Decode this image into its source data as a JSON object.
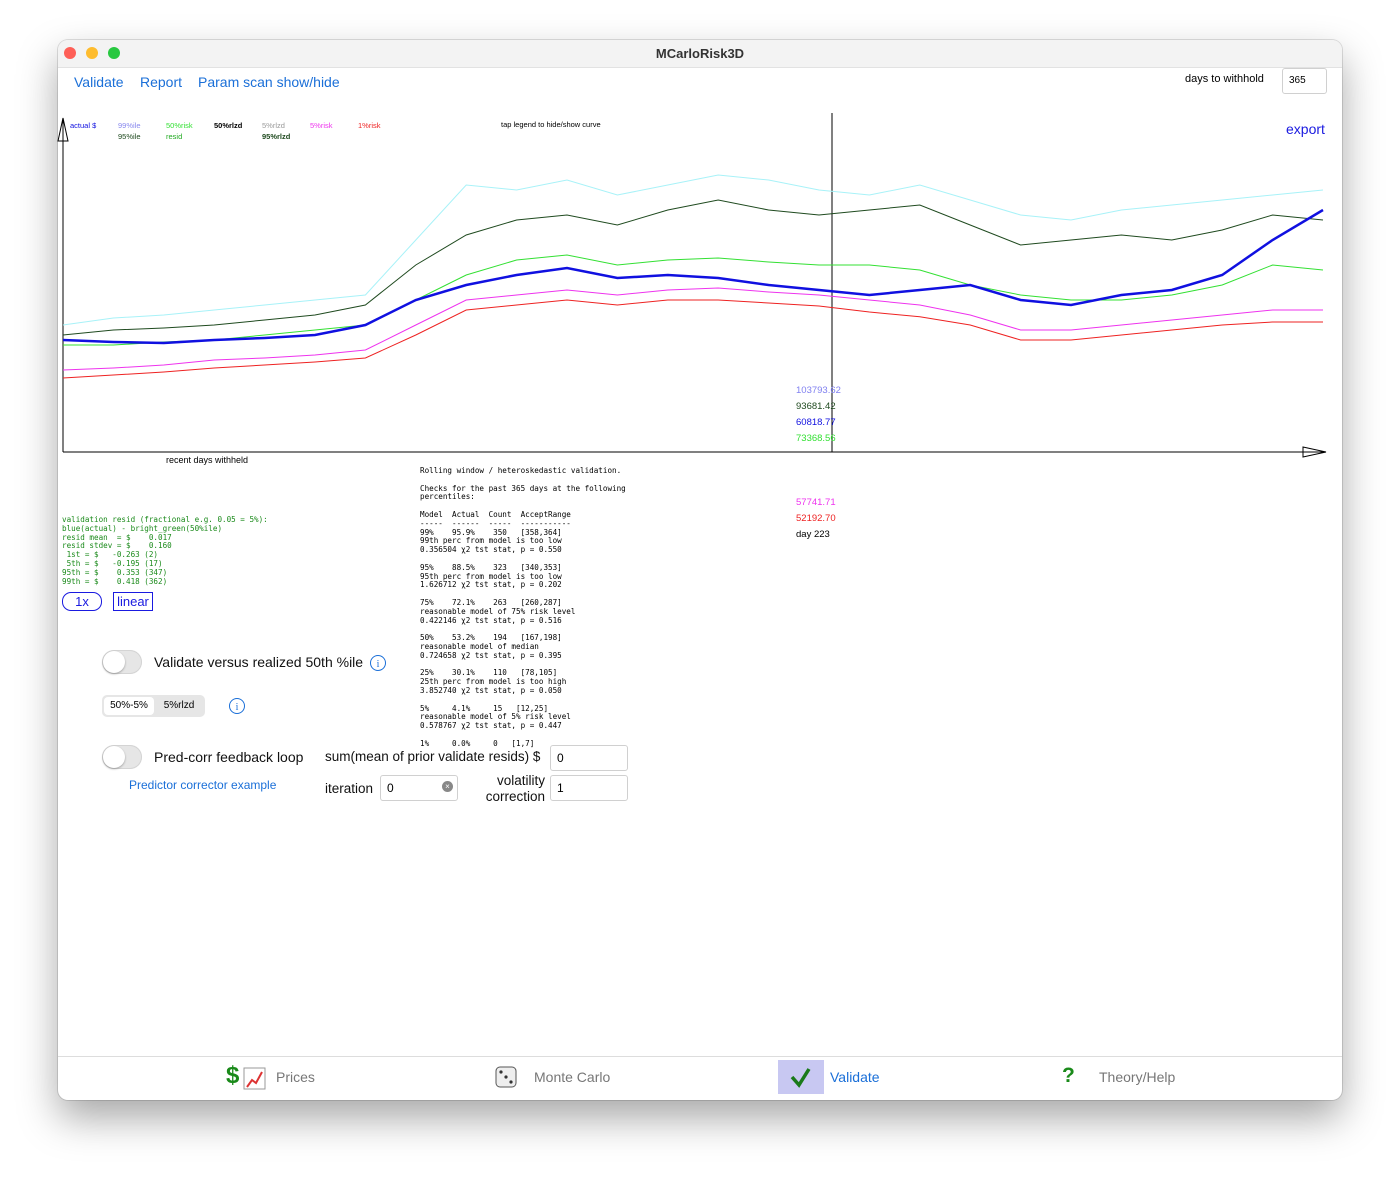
{
  "window_title": "MCarloRisk3D",
  "menu": [
    "Validate",
    "Report",
    "Param scan show/hide"
  ],
  "days_to_withhold": {
    "label": "days to withhold",
    "value": "365"
  },
  "export": "export",
  "chart_data": {
    "type": "line",
    "note": "tap legend to hide/show curve",
    "xlabel": "recent days withheld",
    "ylim": [
      -7920,
      148020
    ],
    "series": [
      {
        "name": "actual $",
        "color": "#1010e0",
        "values": [
          43600,
          42680,
          42220,
          43600,
          44520,
          45900,
          50500,
          62000,
          68900,
          73500,
          76720,
          72120,
          73500,
          72120,
          68900,
          66600,
          64300,
          66600,
          68900,
          62000,
          59700,
          64300,
          66600,
          73500,
          89600,
          103400
        ]
      },
      {
        "name": "99%ile",
        "color": "#a8f2f8",
        "values": [
          50500,
          53720,
          55100,
          57400,
          59700,
          62000,
          64300,
          89600,
          114900,
          112600,
          117200,
          110300,
          114900,
          119500,
          117200,
          112600,
          110300,
          114900,
          108000,
          101100,
          98800,
          103400,
          105700,
          108000,
          110300,
          112600
        ]
      },
      {
        "name": "95%ile",
        "color": "#1f4a1f",
        "values": [
          45900,
          48200,
          49120,
          50500,
          52800,
          55100,
          59700,
          78100,
          91900,
          98800,
          101100,
          96500,
          103400,
          108000,
          103400,
          101100,
          103400,
          105700,
          96500,
          87300,
          89600,
          91900,
          89600,
          94200,
          101100,
          98800
        ]
      },
      {
        "name": "50%risk",
        "color": "#33e033",
        "values": [
          41300,
          41300,
          42680,
          43600,
          45900,
          48200,
          50500,
          62000,
          73500,
          80400,
          82700,
          78100,
          80400,
          81320,
          79480,
          78100,
          78100,
          75800,
          68900,
          64300,
          62000,
          62000,
          64300,
          68900,
          78100,
          75800
        ]
      },
      {
        "name": "5%risk",
        "color": "#ee33ee",
        "values": [
          29800,
          30720,
          32100,
          34400,
          35320,
          36700,
          39000,
          50500,
          62000,
          64300,
          66600,
          64300,
          66600,
          67520,
          65680,
          64300,
          62000,
          59700,
          55100,
          48200,
          48200,
          50500,
          52800,
          55100,
          57400,
          57400
        ]
      },
      {
        "name": "1%risk",
        "color": "#ee2222",
        "values": [
          26120,
          27500,
          28880,
          30720,
          32100,
          33480,
          35320,
          45900,
          57400,
          59700,
          62000,
          59700,
          62000,
          62000,
          60620,
          59240,
          56480,
          54280,
          50500,
          43600,
          43600,
          45900,
          48200,
          50500,
          51880,
          51880
        ]
      }
    ],
    "other_legend": [
      {
        "name": "50%rlzd",
        "color": "#000000"
      },
      {
        "name": "5%rlzd",
        "color": "#999999"
      },
      {
        "name": "resid",
        "color": "#22aa22"
      },
      {
        "name": "95%rlzd",
        "color": "#1f4a1f"
      }
    ],
    "cursor_labels": [
      {
        "label": "103793.62",
        "color": "#8080f0"
      },
      {
        "label": "93681.42",
        "color": "#1f4a1f"
      },
      {
        "label": "60818.77",
        "color": "#1010e0"
      },
      {
        "label": "73368.56",
        "color": "#33e033"
      },
      {
        "label": "57741.71",
        "color": "#ee33ee"
      },
      {
        "label": "52192.70",
        "color": "#ee2222"
      },
      {
        "label": "day 223",
        "color": "#000000"
      }
    ]
  },
  "resid_block": [
    "validation resid (fractional e.g. 0.05 = 5%):",
    "blue(actual) - bright_green(50%ile)",
    "resid mean  = $    0.017",
    "resid stdev = $    0.160",
    " 1st = $   -0.263 (2)",
    " 5th = $   -0.195 (17)",
    "95th = $    0.353 (347)",
    "99th = $    0.418 (362)"
  ],
  "buttons": [
    "1x",
    "linear"
  ],
  "report": [
    [
      "Rolling window / heteroskedastic validation."
    ],
    [
      "Checks for the past 365 days at the following",
      "percentiles:"
    ],
    [
      "Model  Actual  Count  AcceptRange",
      "-----  ------  -----  -----------",
      "99%    95.9%    350   [358,364]",
      "99th perc from model is too low",
      "0.356504 χ2 tst stat, p = 0.550"
    ],
    [
      "95%    88.5%    323   [340,353]",
      "95th perc from model is too low",
      "1.626712 χ2 tst stat, p = 0.202"
    ],
    [
      "75%    72.1%    263   [260,287]",
      "reasonable model of 75% risk level",
      "0.422146 χ2 tst stat, p = 0.516"
    ],
    [
      "50%    53.2%    194   [167,198]",
      "reasonable model of median",
      "0.724658 χ2 tst stat, p = 0.395"
    ],
    [
      "25%    30.1%    110   [78,105]",
      "25th perc from model is too high",
      "3.852740 χ2 tst stat, p = 0.050"
    ],
    [
      "5%     4.1%     15   [12,25]",
      "reasonable model of 5% risk level",
      "0.578767 χ2 tst stat, p = 0.447"
    ],
    [
      "1%     0.0%     0   [1,7]"
    ]
  ],
  "controls": {
    "validate_toggle": "Validate versus realized 50th %ile",
    "segments": [
      "50%-5%",
      "5%rlzd"
    ],
    "predcorr_toggle": "Pred-corr feedback loop",
    "predcorr_link": "Predictor corrector example",
    "sum_label": "sum(mean of prior validate resids) $",
    "sum_value": "0",
    "iteration_label": "iteration",
    "iteration_value": "0",
    "volatility_label": [
      "volatility",
      "correction"
    ],
    "volatility_value": "1"
  },
  "tabs": [
    {
      "icon": "$",
      "label": "Prices"
    },
    {
      "label": "Monte Carlo"
    },
    {
      "label": "Validate"
    },
    {
      "icon": "?",
      "label": "Theory/Help"
    }
  ]
}
